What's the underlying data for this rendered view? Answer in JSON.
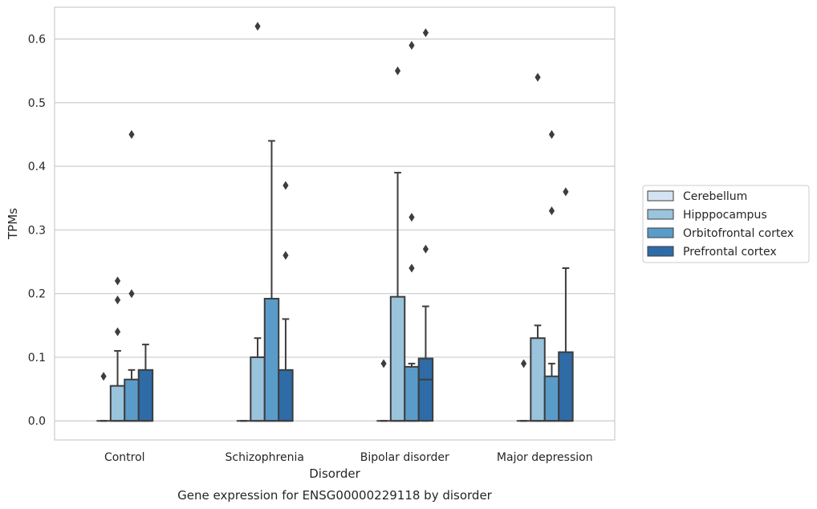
{
  "chart_data": {
    "type": "box",
    "title": "",
    "caption": "Gene expression for ENSG00000229118 by disorder",
    "xlabel": "Disorder",
    "ylabel": "TPMs",
    "ylim": [
      -0.03,
      0.65
    ],
    "yticks": [
      0.0,
      0.1,
      0.2,
      0.3,
      0.4,
      0.5,
      0.6
    ],
    "ytick_labels": [
      "0.0",
      "0.1",
      "0.2",
      "0.3",
      "0.4",
      "0.5",
      "0.6"
    ],
    "grid": true,
    "legend_placement": "right",
    "categories": [
      "Control",
      "Schizophrenia",
      "Bipolar disorder",
      "Major depression"
    ],
    "series": [
      {
        "name": "Cerebellum",
        "color": "#d3e3f2",
        "boxes": [
          {
            "q1": 0.0,
            "median": 0.0,
            "q3": 0.0,
            "whisker_low": 0.0,
            "whisker_high": 0.0,
            "outliers": [
              0.07
            ]
          },
          {
            "q1": 0.0,
            "median": 0.0,
            "q3": 0.0,
            "whisker_low": 0.0,
            "whisker_high": 0.0,
            "outliers": []
          },
          {
            "q1": 0.0,
            "median": 0.0,
            "q3": 0.0,
            "whisker_low": 0.0,
            "whisker_high": 0.0,
            "outliers": [
              0.09
            ]
          },
          {
            "q1": 0.0,
            "median": 0.0,
            "q3": 0.0,
            "whisker_low": 0.0,
            "whisker_high": 0.0,
            "outliers": [
              0.09
            ]
          }
        ]
      },
      {
        "name": "Hipppocampus",
        "color": "#9ac3dc",
        "boxes": [
          {
            "q1": 0.0,
            "median": 0.0,
            "q3": 0.055,
            "whisker_low": 0.0,
            "whisker_high": 0.11,
            "outliers": [
              0.14,
              0.19,
              0.22
            ]
          },
          {
            "q1": 0.0,
            "median": 0.0,
            "q3": 0.1,
            "whisker_low": 0.0,
            "whisker_high": 0.13,
            "outliers": [
              0.62
            ]
          },
          {
            "q1": 0.0,
            "median": 0.0,
            "q3": 0.195,
            "whisker_low": 0.0,
            "whisker_high": 0.39,
            "outliers": [
              0.55
            ]
          },
          {
            "q1": 0.0,
            "median": 0.0,
            "q3": 0.13,
            "whisker_low": 0.0,
            "whisker_high": 0.15,
            "outliers": [
              0.54
            ]
          }
        ]
      },
      {
        "name": "Orbitofrontal cortex",
        "color": "#5a9cc9",
        "boxes": [
          {
            "q1": 0.0,
            "median": 0.0,
            "q3": 0.065,
            "whisker_low": 0.0,
            "whisker_high": 0.08,
            "outliers": [
              0.2,
              0.45
            ]
          },
          {
            "q1": 0.0,
            "median": 0.0,
            "q3": 0.192,
            "whisker_low": 0.0,
            "whisker_high": 0.44,
            "outliers": []
          },
          {
            "q1": 0.0,
            "median": 0.0,
            "q3": 0.085,
            "whisker_low": 0.0,
            "whisker_high": 0.09,
            "outliers": [
              0.24,
              0.32,
              0.59
            ]
          },
          {
            "q1": 0.0,
            "median": 0.0,
            "q3": 0.07,
            "whisker_low": 0.0,
            "whisker_high": 0.09,
            "outliers": [
              0.33,
              0.45
            ]
          }
        ]
      },
      {
        "name": "Prefrontal cortex",
        "color": "#2e6ba7",
        "boxes": [
          {
            "q1": 0.0,
            "median": 0.0,
            "q3": 0.08,
            "whisker_low": 0.0,
            "whisker_high": 0.12,
            "outliers": []
          },
          {
            "q1": 0.0,
            "median": 0.0,
            "q3": 0.08,
            "whisker_low": 0.0,
            "whisker_high": 0.16,
            "outliers": [
              0.26,
              0.37
            ]
          },
          {
            "q1": 0.0,
            "median": 0.065,
            "q3": 0.098,
            "whisker_low": 0.0,
            "whisker_high": 0.18,
            "outliers": [
              0.27,
              0.61
            ]
          },
          {
            "q1": 0.0,
            "median": 0.0,
            "q3": 0.108,
            "whisker_low": 0.0,
            "whisker_high": 0.24,
            "outliers": [
              0.36
            ]
          }
        ]
      }
    ]
  }
}
